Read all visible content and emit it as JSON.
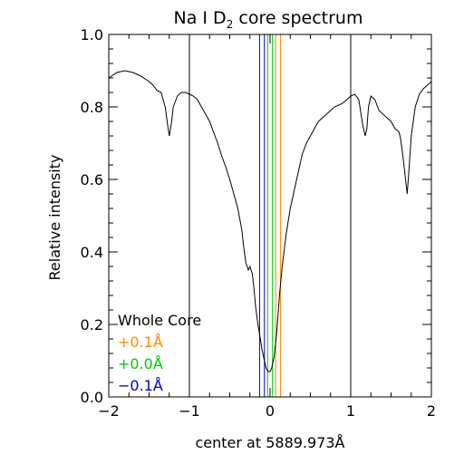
{
  "chart_data": {
    "type": "line",
    "title_main": "Na I D",
    "title_sub": "2",
    "title_rest": " core spectrum",
    "xlabel": "center at 5889.973Å",
    "ylabel": "Relative intensity",
    "xlim": [
      -2,
      2
    ],
    "ylim": [
      0.0,
      1.0
    ],
    "x_ticks": [
      -2,
      -1,
      0,
      1,
      2
    ],
    "x_tick_labels": [
      "−2",
      "−1",
      "0",
      "1",
      "2"
    ],
    "y_ticks": [
      0.0,
      0.2,
      0.4,
      0.6,
      0.8,
      1.0
    ],
    "y_tick_labels": [
      "0.0",
      "0.2",
      "0.4",
      "0.6",
      "0.8",
      "1.0"
    ],
    "legend": [
      {
        "label": "Whole Core",
        "color": "#000000"
      },
      {
        "label": "+0.1Å",
        "color": "#ff8c00"
      },
      {
        "label": "+0.0Å",
        "color": "#00cc00"
      },
      {
        "label": "−0.1Å",
        "color": "#0000cc"
      }
    ],
    "bands": [
      {
        "name": "Whole Core",
        "color": "#000000",
        "x": [
          -1.0,
          1.0
        ]
      },
      {
        "name": "+0.1Å",
        "color": "#ff8c00",
        "x": [
          0.07,
          0.13
        ]
      },
      {
        "name": "+0.0Å",
        "color": "#00cc00",
        "x": [
          -0.03,
          0.03
        ]
      },
      {
        "name": "−0.1Å",
        "color": "#0000cc",
        "x": [
          -0.13,
          -0.07
        ]
      }
    ],
    "series": [
      {
        "color": "#000000",
        "x": [
          -2.0,
          -1.9,
          -1.8,
          -1.7,
          -1.6,
          -1.5,
          -1.45,
          -1.4,
          -1.35,
          -1.3,
          -1.27,
          -1.25,
          -1.22,
          -1.2,
          -1.15,
          -1.1,
          -1.05,
          -1.0,
          -0.95,
          -0.9,
          -0.85,
          -0.8,
          -0.75,
          -0.7,
          -0.65,
          -0.6,
          -0.55,
          -0.5,
          -0.45,
          -0.4,
          -0.35,
          -0.33,
          -0.3,
          -0.27,
          -0.25,
          -0.22,
          -0.2,
          -0.18,
          -0.15,
          -0.12,
          -0.1,
          -0.07,
          -0.05,
          -0.02,
          0.0,
          0.02,
          0.05,
          0.08,
          0.1,
          0.12,
          0.15,
          0.2,
          0.25,
          0.3,
          0.35,
          0.4,
          0.45,
          0.5,
          0.55,
          0.6,
          0.7,
          0.8,
          0.9,
          1.0,
          1.05,
          1.1,
          1.15,
          1.18,
          1.2,
          1.22,
          1.25,
          1.3,
          1.35,
          1.4,
          1.45,
          1.5,
          1.55,
          1.58,
          1.6,
          1.62,
          1.65,
          1.68,
          1.7,
          1.72,
          1.75,
          1.8,
          1.85,
          1.9,
          1.95,
          2.0
        ],
        "y": [
          0.88,
          0.895,
          0.9,
          0.895,
          0.885,
          0.87,
          0.86,
          0.845,
          0.84,
          0.8,
          0.75,
          0.72,
          0.76,
          0.8,
          0.83,
          0.84,
          0.84,
          0.835,
          0.83,
          0.82,
          0.8,
          0.78,
          0.76,
          0.73,
          0.7,
          0.665,
          0.635,
          0.6,
          0.56,
          0.52,
          0.46,
          0.42,
          0.37,
          0.35,
          0.36,
          0.34,
          0.3,
          0.25,
          0.2,
          0.16,
          0.13,
          0.1,
          0.08,
          0.07,
          0.07,
          0.08,
          0.11,
          0.17,
          0.23,
          0.29,
          0.36,
          0.45,
          0.52,
          0.57,
          0.62,
          0.67,
          0.7,
          0.72,
          0.74,
          0.76,
          0.78,
          0.8,
          0.81,
          0.83,
          0.835,
          0.82,
          0.75,
          0.72,
          0.74,
          0.8,
          0.83,
          0.82,
          0.79,
          0.78,
          0.77,
          0.76,
          0.74,
          0.735,
          0.73,
          0.71,
          0.66,
          0.6,
          0.56,
          0.62,
          0.72,
          0.8,
          0.835,
          0.85,
          0.86,
          0.87
        ]
      }
    ],
    "grid": false
  }
}
